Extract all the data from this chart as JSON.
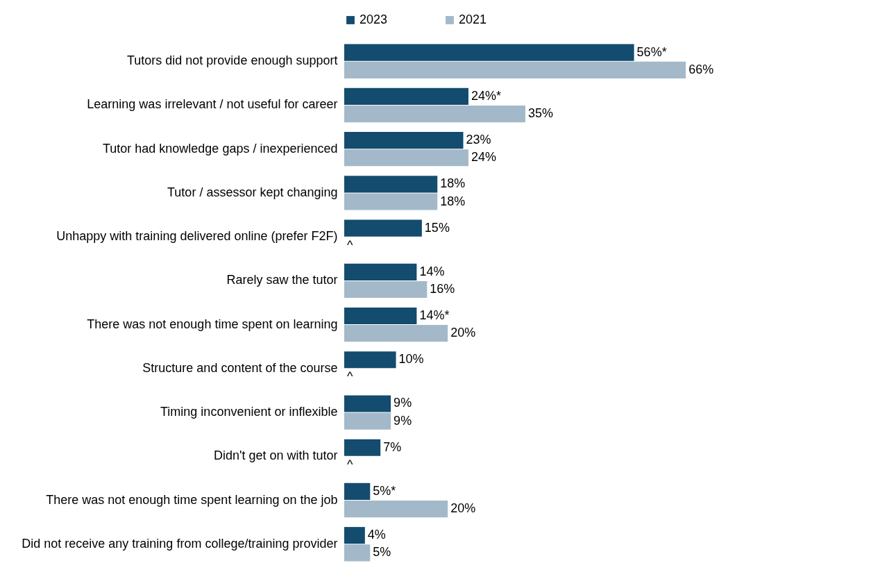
{
  "chart_data": {
    "type": "bar",
    "orientation": "horizontal",
    "legend": "top",
    "categories": [
      "Tutors did not provide enough support",
      "Learning was irrelevant / not useful for career",
      "Tutor had knowledge gaps /  inexperienced",
      "Tutor / assessor kept changing",
      "Unhappy with training delivered online (prefer F2F)",
      "Rarely saw the tutor",
      "There was not enough time spent on learning",
      "Structure and content of the course",
      "Timing inconvenient or inflexible",
      "Didn't get on with tutor",
      "There was not enough time spent learning on the job",
      "Did not receive any training from college/training provider"
    ],
    "series": [
      {
        "name": "2023",
        "color": "#134c6e",
        "values": [
          56,
          24,
          23,
          18,
          15,
          14,
          14,
          10,
          9,
          7,
          5,
          4
        ],
        "value_labels": [
          "56%*",
          "24%*",
          "23%",
          "18%",
          "15%",
          "14%",
          "14%*",
          "10%",
          "9%",
          "7%",
          "5%*",
          "4%"
        ]
      },
      {
        "name": "2021",
        "color": "#a3b9c9",
        "values": [
          66,
          35,
          24,
          18,
          null,
          16,
          20,
          null,
          9,
          null,
          20,
          5
        ],
        "value_labels": [
          "66%",
          "35%",
          "24%",
          "18%",
          "^",
          "16%",
          "20%",
          "^",
          "9%",
          "^",
          "20%",
          "5%"
        ]
      }
    ]
  }
}
